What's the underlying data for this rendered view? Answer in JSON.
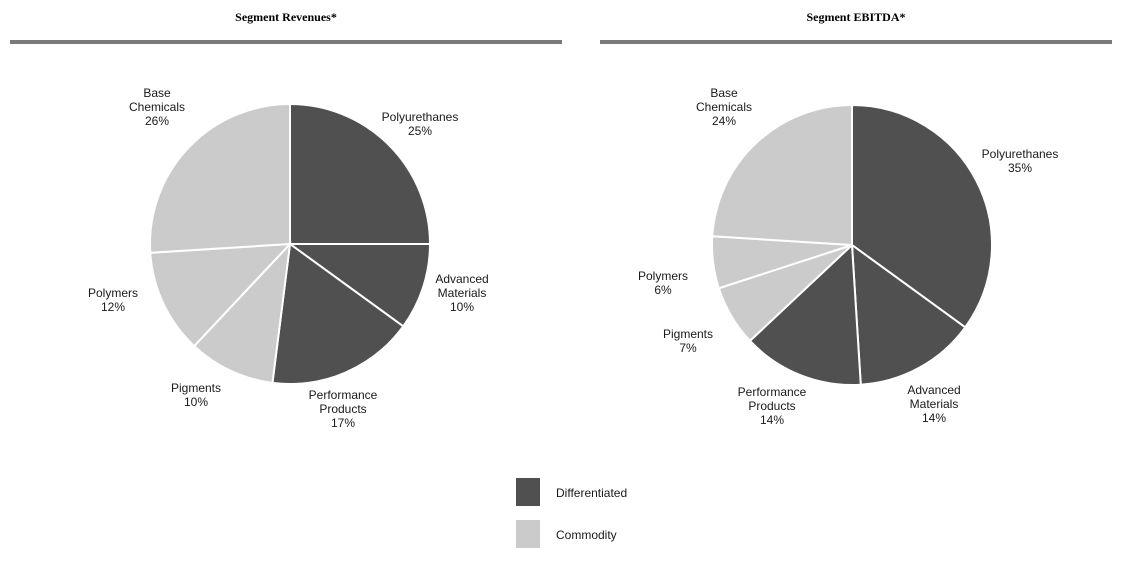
{
  "colors": {
    "differentiated": "#505050",
    "commodity": "#cbcbcb",
    "slice_border": "#ffffff",
    "rule": "#7a7a7a"
  },
  "legend": [
    {
      "label": "Differentiated",
      "color_key": "differentiated"
    },
    {
      "label": "Commodity",
      "color_key": "commodity"
    }
  ],
  "chart_data": [
    {
      "type": "pie",
      "title": "Segment Revenues*",
      "slices": [
        {
          "label_lines": [
            "Polyurethanes"
          ],
          "value": 25,
          "value_text": "25%",
          "group": "differentiated"
        },
        {
          "label_lines": [
            "Advanced",
            "Materials"
          ],
          "value": 10,
          "value_text": "10%",
          "group": "differentiated"
        },
        {
          "label_lines": [
            "Performance",
            "Products"
          ],
          "value": 17,
          "value_text": "17%",
          "group": "differentiated"
        },
        {
          "label_lines": [
            "Pigments"
          ],
          "value": 10,
          "value_text": "10%",
          "group": "commodity"
        },
        {
          "label_lines": [
            "Polymers"
          ],
          "value": 12,
          "value_text": "12%",
          "group": "commodity"
        },
        {
          "label_lines": [
            "Base",
            "Chemicals"
          ],
          "value": 26,
          "value_text": "26%",
          "group": "commodity"
        }
      ]
    },
    {
      "type": "pie",
      "title": "Segment EBITDA*",
      "slices": [
        {
          "label_lines": [
            "Polyurethanes"
          ],
          "value": 35,
          "value_text": "35%",
          "group": "differentiated"
        },
        {
          "label_lines": [
            "Advanced",
            "Materials"
          ],
          "value": 14,
          "value_text": "14%",
          "group": "differentiated"
        },
        {
          "label_lines": [
            "Performance",
            "Products"
          ],
          "value": 14,
          "value_text": "14%",
          "group": "differentiated"
        },
        {
          "label_lines": [
            "Pigments"
          ],
          "value": 7,
          "value_text": "7%",
          "group": "commodity"
        },
        {
          "label_lines": [
            "Polymers"
          ],
          "value": 6,
          "value_text": "6%",
          "group": "commodity"
        },
        {
          "label_lines": [
            "Base",
            "Chemicals"
          ],
          "value": 24,
          "value_text": "24%",
          "group": "commodity"
        }
      ]
    }
  ]
}
